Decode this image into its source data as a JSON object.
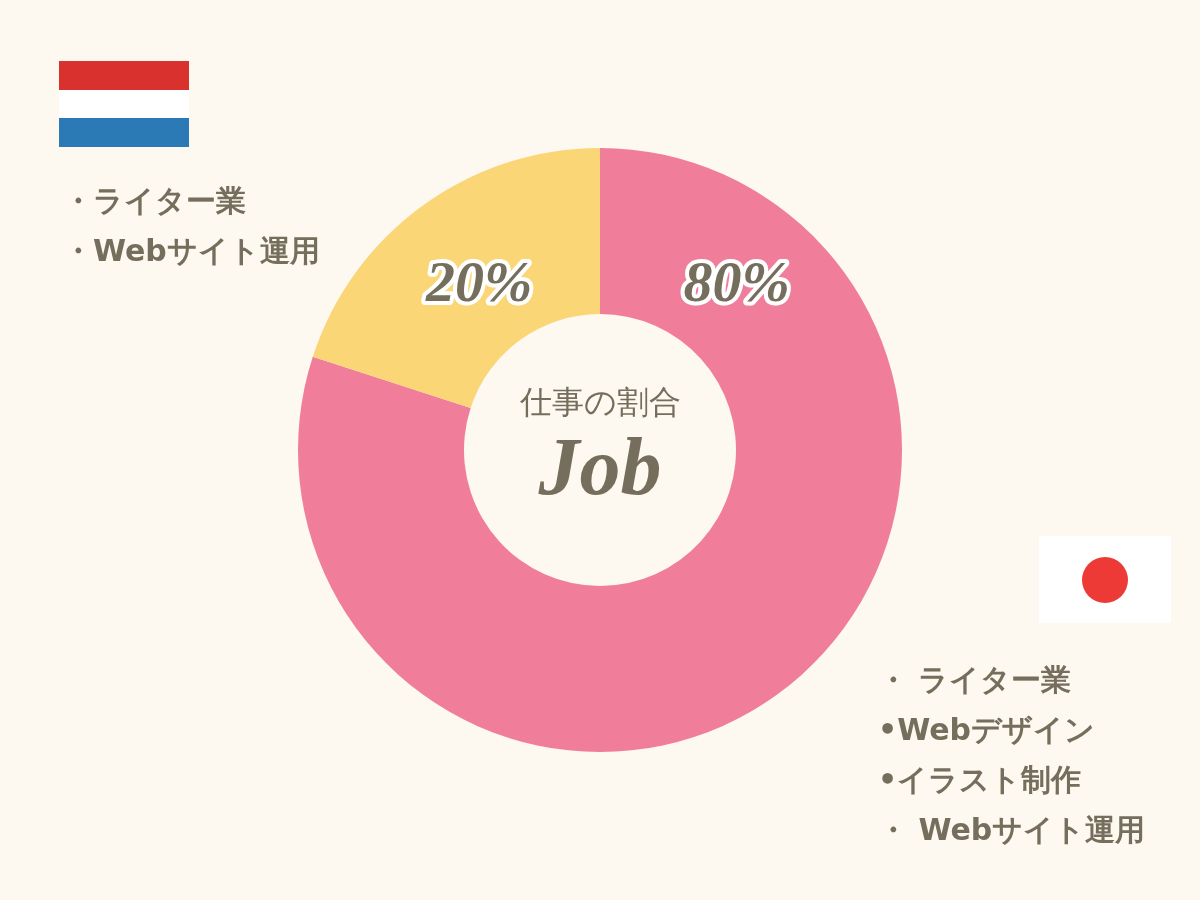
{
  "chart_data": {
    "type": "donut",
    "title": "仕事の割合",
    "subtitle": "Job",
    "categories": [
      null,
      null
    ],
    "values": [
      80,
      20
    ],
    "colors": [
      "#f07e9b",
      "#fbd676"
    ],
    "value_labels": [
      "80%",
      "20%"
    ],
    "annotations": [
      "・ライター業",
      "・Webサイト運用",
      "・ ライター業",
      "•Webデザイン",
      "•イラスト制作",
      "・ Webサイト運用"
    ]
  }
}
